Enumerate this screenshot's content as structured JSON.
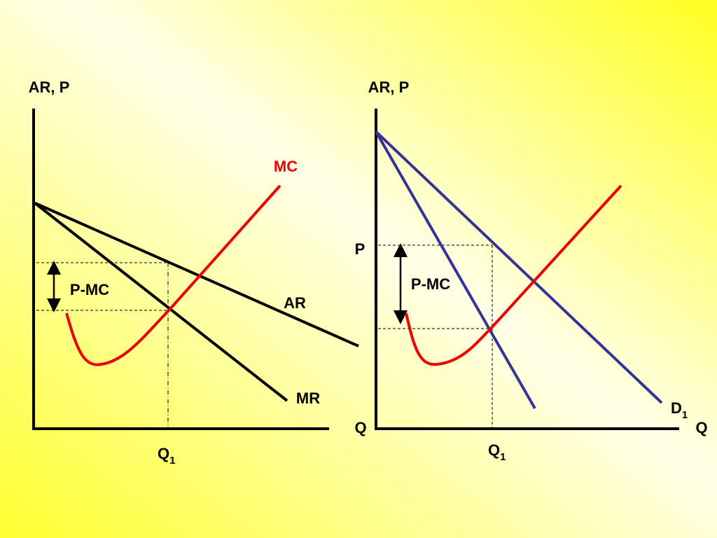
{
  "left_panel": {
    "y_axis_label": "AR, P",
    "x_axis_label": "Q",
    "mc_label": "MC",
    "ar_label": "AR",
    "mr_label": "MR",
    "gap_label": "P-MC",
    "quantity_label": {
      "main": "Q",
      "sub": "1"
    }
  },
  "right_panel": {
    "y_axis_label": "AR, P",
    "x_axis_label": "Q",
    "price_label": "P",
    "gap_label": "P-MC",
    "demand_label": {
      "main": "D",
      "sub": "1"
    },
    "quantity_label": {
      "main": "Q",
      "sub": "1"
    }
  }
}
